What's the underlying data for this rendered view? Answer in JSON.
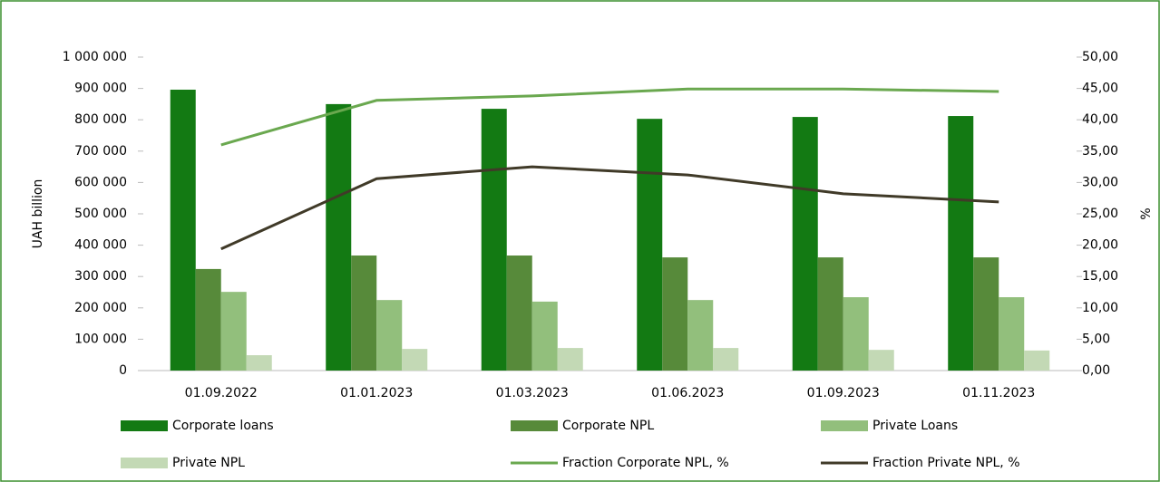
{
  "chart_data": {
    "type": "bar_line",
    "ylabel": "UAH billion",
    "y2label": "%",
    "categories": [
      "01.09.2022",
      "01.01.2023",
      "01.03.2023",
      "01.06.2023",
      "01.09.2023",
      "01.11.2023"
    ],
    "series": [
      {
        "name": "Corporate loans",
        "type": "bar",
        "color": "#137a13",
        "values": [
          896000,
          850000,
          835000,
          803000,
          809000,
          812000
        ]
      },
      {
        "name": "Corporate NPL",
        "type": "bar",
        "color": "#578a3a",
        "values": [
          324000,
          367000,
          367000,
          361000,
          361000,
          361000
        ]
      },
      {
        "name": "Private Loans",
        "type": "bar",
        "color": "#92bf7c",
        "values": [
          251000,
          225000,
          220000,
          225000,
          234000,
          234000
        ]
      },
      {
        "name": "Private  NPL",
        "type": "bar",
        "color": "#c3d9b5",
        "values": [
          49000,
          69000,
          72000,
          72000,
          66000,
          64000
        ]
      },
      {
        "name": "Fraction Corporate NPL, %",
        "type": "line",
        "axis": "y2",
        "color": "#6aa84f",
        "values": [
          36.0,
          43.1,
          43.8,
          44.9,
          44.9,
          44.5
        ]
      },
      {
        "name": "Fraction Private NPL, %",
        "type": "line",
        "axis": "y2",
        "color": "#403a28",
        "values": [
          19.4,
          30.6,
          32.5,
          31.2,
          28.2,
          26.9
        ]
      }
    ],
    "ylim": [
      0,
      1000000
    ],
    "yticks": [
      0,
      {
        "value": 100000,
        "label": "100 000"
      },
      {
        "value": 200000,
        "label": "200 000"
      },
      {
        "value": 300000,
        "label": "300 000"
      },
      {
        "value": 400000,
        "label": "400 000"
      },
      {
        "value": 500000,
        "label": "500 000"
      },
      {
        "value": 600000,
        "label": "600 000"
      },
      {
        "value": 700000,
        "label": "700 000"
      },
      {
        "value": 800000,
        "label": "800 000"
      },
      {
        "value": 900000,
        "label": "900 000"
      },
      {
        "value": 1000000,
        "label": "1 000 000"
      }
    ],
    "y2lim": [
      0,
      50
    ],
    "y2ticks": [
      {
        "value": 0,
        "label": "0,00"
      },
      {
        "value": 5,
        "label": "5,00"
      },
      {
        "value": 10,
        "label": "10,00"
      },
      {
        "value": 15,
        "label": "15,00"
      },
      {
        "value": 20,
        "label": "20,00"
      },
      {
        "value": 25,
        "label": "25,00"
      },
      {
        "value": 30,
        "label": "30,00"
      },
      {
        "value": 35,
        "label": "35,00"
      },
      {
        "value": 40,
        "label": "40,00"
      },
      {
        "value": 45,
        "label": "45,00"
      },
      {
        "value": 50,
        "label": "50,00"
      }
    ],
    "legend": "bottom"
  }
}
